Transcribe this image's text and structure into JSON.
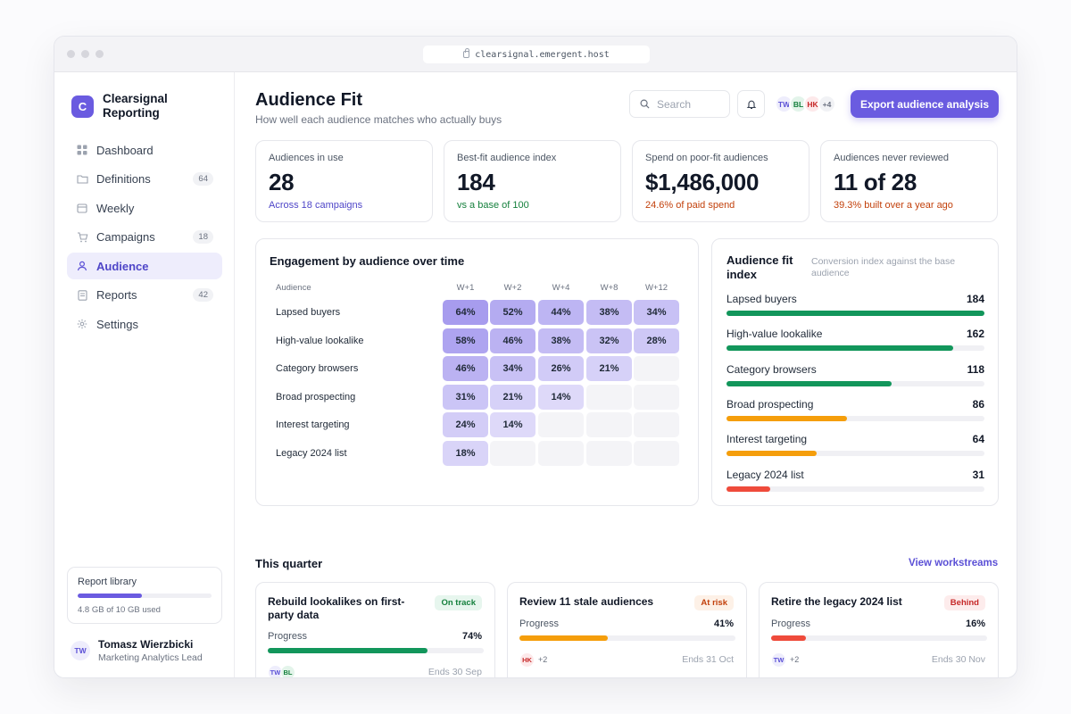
{
  "browser": {
    "url": "clearsignal.emergent.host"
  },
  "brand": {
    "initial": "C",
    "name": "Clearsignal Reporting"
  },
  "nav": [
    {
      "label": "Dashboard",
      "icon": "grid-icon",
      "count": ""
    },
    {
      "label": "Definitions",
      "icon": "folder-icon",
      "count": "64"
    },
    {
      "label": "Weekly",
      "icon": "calendar-icon",
      "count": ""
    },
    {
      "label": "Campaigns",
      "icon": "cart-icon",
      "count": "18"
    },
    {
      "label": "Audience",
      "icon": "user-icon",
      "count": "",
      "active": true
    },
    {
      "label": "Reports",
      "icon": "document-icon",
      "count": "42"
    },
    {
      "label": "Settings",
      "icon": "gear-icon",
      "count": ""
    }
  ],
  "library": {
    "title": "Report library",
    "usage": "4.8 GB of 10 GB used",
    "fraction": 0.48
  },
  "user": {
    "initials": "TW",
    "name": "Tomasz Wierzbicki",
    "role": "Marketing Analytics Lead"
  },
  "header": {
    "title": "Audience Fit",
    "subtitle": "How well each audience matches who actually buys",
    "search_placeholder": "Search",
    "avatars": [
      "TW",
      "BL",
      "HK"
    ],
    "avatars_more": "+4",
    "export_label": "Export audience analysis"
  },
  "kpis": [
    {
      "label": "Audiences in use",
      "value": "28",
      "foot": "Across 18 campaigns",
      "tone": "#4f46c8"
    },
    {
      "label": "Best-fit audience index",
      "value": "184",
      "foot": "vs a base of 100",
      "tone": "#15803d"
    },
    {
      "label": "Spend on poor-fit audiences",
      "value": "$1,486,000",
      "foot": "24.6% of paid spend",
      "tone": "#c2410c"
    },
    {
      "label": "Audiences never reviewed",
      "value": "11 of 28",
      "foot": "39.3% built over a year ago",
      "tone": "#c2410c"
    }
  ],
  "heatmap": {
    "title": "Engagement by audience over time",
    "row_header": "Audience",
    "columns": [
      "W+1",
      "W+2",
      "W+4",
      "W+8",
      "W+12"
    ],
    "rows": [
      {
        "label": "Lapsed buyers",
        "values": [
          64,
          52,
          44,
          38,
          34
        ]
      },
      {
        "label": "High-value lookalike",
        "values": [
          58,
          46,
          38,
          32,
          28
        ]
      },
      {
        "label": "Category browsers",
        "values": [
          46,
          34,
          26,
          21,
          null
        ]
      },
      {
        "label": "Broad prospecting",
        "values": [
          31,
          21,
          14,
          null,
          null
        ]
      },
      {
        "label": "Interest targeting",
        "values": [
          24,
          14,
          null,
          null,
          null
        ]
      },
      {
        "label": "Legacy 2024 list",
        "values": [
          18,
          null,
          null,
          null,
          null
        ]
      }
    ]
  },
  "fit_index": {
    "title": "Audience fit index",
    "subtitle": "Conversion index against the base audience",
    "max": 184,
    "rows": [
      {
        "label": "Lapsed buyers",
        "value": 184,
        "color": "#12965b"
      },
      {
        "label": "High-value lookalike",
        "value": 162,
        "color": "#12965b"
      },
      {
        "label": "Category browsers",
        "value": 118,
        "color": "#12965b"
      },
      {
        "label": "Broad prospecting",
        "value": 86,
        "color": "#f59e0b"
      },
      {
        "label": "Interest targeting",
        "value": 64,
        "color": "#f59e0b"
      },
      {
        "label": "Legacy 2024 list",
        "value": 31,
        "color": "#ef4b3b"
      }
    ]
  },
  "quarter": {
    "title": "This quarter",
    "link": "View workstreams",
    "progress_label": "Progress",
    "items": [
      {
        "title": "Rebuild lookalikes on first-party data",
        "status": "On track",
        "status_color": "#15803d",
        "status_bg": "#e7f6ee",
        "progress": 74,
        "pct_label": "74%",
        "color": "#12965b",
        "avatars": [
          "TW",
          "BL"
        ],
        "more": "",
        "ends": "Ends 30 Sep"
      },
      {
        "title": "Review 11 stale audiences",
        "status": "At risk",
        "status_color": "#c2410c",
        "status_bg": "#fdf1e7",
        "progress": 41,
        "pct_label": "41%",
        "color": "#f59e0b",
        "avatars": [
          "HK"
        ],
        "more": "+2",
        "ends": "Ends 31 Oct"
      },
      {
        "title": "Retire the legacy 2024 list",
        "status": "Behind",
        "status_color": "#c62828",
        "status_bg": "#fdecec",
        "progress": 16,
        "pct_label": "16%",
        "color": "#ef4b3b",
        "avatars": [
          "TW"
        ],
        "more": "+2",
        "ends": "Ends 30 Nov"
      }
    ]
  }
}
